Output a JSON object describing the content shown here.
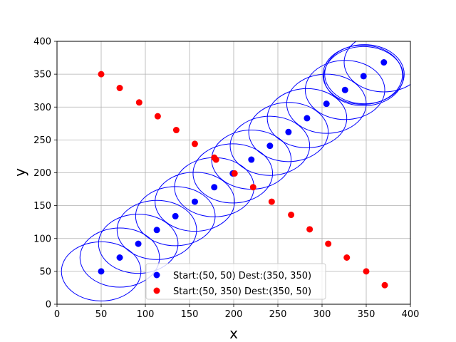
{
  "chart_data": {
    "type": "scatter",
    "title": "",
    "xlabel": "x",
    "ylabel": "y",
    "xlim": [
      0,
      400
    ],
    "ylim": [
      0,
      400
    ],
    "xticks": [
      0,
      50,
      100,
      150,
      200,
      250,
      300,
      350,
      400
    ],
    "yticks": [
      0,
      50,
      100,
      150,
      200,
      250,
      300,
      350,
      400
    ],
    "grid": true,
    "legend_position": "lower-center",
    "series": [
      {
        "name": "Start:(50, 50) Dest:(350, 350)",
        "color": "#0000ff",
        "points": [
          [
            50,
            50
          ],
          [
            71,
            71
          ],
          [
            92,
            92
          ],
          [
            113,
            113
          ],
          [
            134,
            134
          ],
          [
            156,
            156
          ],
          [
            178,
            178
          ],
          [
            199,
            199
          ],
          [
            220,
            220
          ],
          [
            241,
            241
          ],
          [
            262,
            262
          ],
          [
            283,
            283
          ],
          [
            305,
            305
          ],
          [
            326,
            326
          ],
          [
            347,
            347
          ],
          [
            370,
            368
          ]
        ]
      },
      {
        "name": "Start:(50, 350) Dest:(350, 50)",
        "color": "#ff0000",
        "points": [
          [
            50,
            350
          ],
          [
            71,
            329
          ],
          [
            93,
            307
          ],
          [
            114,
            286
          ],
          [
            135,
            265
          ],
          [
            156,
            244
          ],
          [
            178,
            223
          ],
          [
            180,
            220
          ],
          [
            201,
            199
          ],
          [
            222,
            178
          ],
          [
            243,
            156
          ],
          [
            265,
            136
          ],
          [
            286,
            114
          ],
          [
            307,
            92
          ],
          [
            328,
            71
          ],
          [
            350,
            50
          ],
          [
            371,
            29
          ]
        ]
      }
    ],
    "circles": {
      "color": "#0000ff",
      "radius": 45,
      "centers": [
        [
          50,
          50
        ],
        [
          71,
          71
        ],
        [
          92,
          92
        ],
        [
          113,
          113
        ],
        [
          134,
          134
        ],
        [
          156,
          156
        ],
        [
          178,
          178
        ],
        [
          199,
          199
        ],
        [
          220,
          220
        ],
        [
          241,
          241
        ],
        [
          262,
          262
        ],
        [
          283,
          283
        ],
        [
          305,
          305
        ],
        [
          326,
          326
        ],
        [
          347,
          347
        ],
        [
          370,
          368
        ],
        [
          346,
          349
        ],
        [
          348,
          350
        ]
      ]
    }
  }
}
